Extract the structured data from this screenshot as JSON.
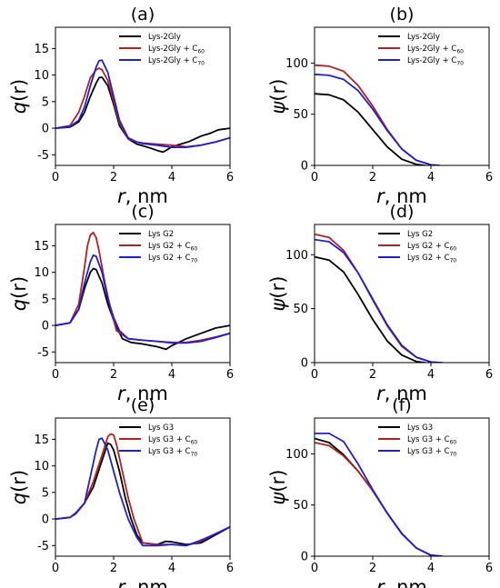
{
  "chart_data": [
    {
      "type": "line",
      "panel_label": "(a)",
      "xlabel_var": "r",
      "xlabel_unit": ", nm",
      "ylabel_var": "q",
      "ylabel_arg": "(r)",
      "xlim": [
        0,
        6
      ],
      "ylim": [
        -7,
        19
      ],
      "xticks": [
        0,
        2,
        4,
        6
      ],
      "yticks": [
        -5,
        0,
        5,
        10,
        15
      ],
      "legend_position": "top-right",
      "series": [
        {
          "name": "Lys-2Gly",
          "name_sub": "",
          "color": "#000000",
          "x": [
            0,
            0.5,
            0.8,
            1.0,
            1.2,
            1.4,
            1.5,
            1.6,
            1.8,
            2.0,
            2.2,
            2.5,
            2.8,
            3.0,
            3.3,
            3.5,
            3.7,
            3.8,
            4.0,
            4.3,
            4.6,
            5.0,
            5.3,
            5.6,
            6.0
          ],
          "y": [
            0,
            0.2,
            1.2,
            3,
            6,
            8.5,
            9.5,
            9.6,
            8,
            4.5,
            0.5,
            -2,
            -3,
            -3.3,
            -3.8,
            -4.2,
            -4.5,
            -4.2,
            -3.5,
            -3,
            -2.5,
            -1.5,
            -1,
            -0.3,
            0
          ]
        },
        {
          "name": "Lys-2Gly + C",
          "name_sub": "60",
          "color": "#b22222",
          "x": [
            0,
            0.5,
            0.8,
            1.0,
            1.2,
            1.4,
            1.5,
            1.6,
            1.8,
            2.0,
            2.2,
            2.5,
            2.8,
            3.0,
            3.5,
            4.0,
            4.5,
            5.0,
            5.5,
            6.0
          ],
          "y": [
            0,
            0.5,
            3,
            6,
            9.5,
            11,
            11.3,
            11,
            9,
            5,
            1,
            -2,
            -2.6,
            -2.8,
            -3,
            -3.2,
            -3.5,
            -3.2,
            -2.6,
            -1.8
          ]
        },
        {
          "name": "Lys-2Gly + C",
          "name_sub": "70",
          "color": "#1f1fd6",
          "x": [
            0,
            0.5,
            0.8,
            1.0,
            1.2,
            1.4,
            1.5,
            1.6,
            1.8,
            2.0,
            2.2,
            2.5,
            2.8,
            3.0,
            3.5,
            4.0,
            4.5,
            5.0,
            5.5,
            6.0
          ],
          "y": [
            0,
            0.3,
            1.5,
            4,
            8,
            11.5,
            12.7,
            12.8,
            10.5,
            6,
            1.5,
            -1.8,
            -2.6,
            -2.9,
            -3.2,
            -3.6,
            -3.6,
            -3.2,
            -2.6,
            -1.8
          ]
        }
      ]
    },
    {
      "type": "line",
      "panel_label": "(b)",
      "xlabel_var": "r",
      "xlabel_unit": ", nm",
      "ylabel_var": "ψ",
      "ylabel_arg": "(r)",
      "xlim": [
        0,
        6
      ],
      "ylim": [
        0,
        135
      ],
      "xticks": [
        0,
        2,
        4,
        6
      ],
      "yticks": [
        0,
        50,
        100
      ],
      "legend_position": "top-right",
      "series": [
        {
          "name": "Lys-2Gly",
          "name_sub": "",
          "color": "#000000",
          "x": [
            0,
            0.5,
            1.0,
            1.5,
            2.0,
            2.5,
            3.0,
            3.5,
            3.8
          ],
          "y": [
            70,
            69,
            64,
            52,
            35,
            18,
            6,
            1,
            0
          ]
        },
        {
          "name": "Lys-2Gly + C",
          "name_sub": "60",
          "color": "#b22222",
          "x": [
            0,
            0.5,
            1.0,
            1.5,
            2.0,
            2.5,
            3.0,
            3.5,
            4.0,
            4.3
          ],
          "y": [
            98,
            97,
            92,
            78,
            58,
            35,
            16,
            5,
            0.5,
            0
          ]
        },
        {
          "name": "Lys-2Gly + C",
          "name_sub": "70",
          "color": "#1f1fd6",
          "x": [
            0,
            0.5,
            1.0,
            1.5,
            2.0,
            2.5,
            3.0,
            3.5,
            4.0,
            4.3
          ],
          "y": [
            89,
            88,
            84,
            73,
            55,
            34,
            16,
            5,
            0.5,
            0
          ]
        }
      ]
    },
    {
      "type": "line",
      "panel_label": "(c)",
      "xlabel_var": "r",
      "xlabel_unit": ", nm",
      "ylabel_var": "q",
      "ylabel_arg": "(r)",
      "xlim": [
        0,
        6
      ],
      "ylim": [
        -7,
        19
      ],
      "xticks": [
        0,
        2,
        4,
        6
      ],
      "yticks": [
        -5,
        0,
        5,
        10,
        15
      ],
      "legend_position": "top-right",
      "series": [
        {
          "name": "Lys G2",
          "name_sub": "",
          "color": "#000000",
          "x": [
            0,
            0.5,
            0.8,
            1.0,
            1.2,
            1.3,
            1.4,
            1.6,
            1.8,
            2.0,
            2.3,
            2.6,
            3.0,
            3.5,
            3.8,
            4.0,
            4.5,
            5.0,
            5.5,
            6.0
          ],
          "y": [
            0,
            0.5,
            3,
            7,
            10,
            10.7,
            10.5,
            8,
            4,
            1,
            -2.5,
            -3.2,
            -3.5,
            -4,
            -4.5,
            -3.8,
            -2.5,
            -1.5,
            -0.5,
            0
          ]
        },
        {
          "name": "Lys G2 + C",
          "name_sub": "60",
          "color": "#b22222",
          "x": [
            0,
            0.5,
            0.8,
            1.0,
            1.1,
            1.2,
            1.3,
            1.4,
            1.5,
            1.7,
            1.9,
            2.1,
            2.5,
            3.0,
            3.5,
            4.0,
            4.5,
            5.0,
            5.5,
            6.0
          ],
          "y": [
            0,
            0.5,
            4,
            11,
            15,
            17,
            17.5,
            16.5,
            14,
            8,
            3,
            -1,
            -2.5,
            -2.8,
            -3,
            -3.2,
            -3.2,
            -2.8,
            -2.2,
            -1.5
          ]
        },
        {
          "name": "Lys G2 + C",
          "name_sub": "70",
          "color": "#1f1fd6",
          "x": [
            0,
            0.5,
            0.8,
            1.0,
            1.2,
            1.3,
            1.4,
            1.6,
            1.8,
            2.0,
            2.2,
            2.5,
            3.0,
            3.5,
            4.0,
            4.5,
            5.0,
            5.5,
            6.0
          ],
          "y": [
            0,
            0.5,
            3,
            8,
            12,
            13.2,
            13,
            10,
            5,
            1.5,
            -1,
            -2.5,
            -2.8,
            -3,
            -3.3,
            -3.3,
            -3,
            -2.3,
            -1.5
          ]
        }
      ]
    },
    {
      "type": "line",
      "panel_label": "(d)",
      "xlabel_var": "r",
      "xlabel_unit": ", nm",
      "ylabel_var": "ψ",
      "ylabel_arg": "(r)",
      "xlim": [
        0,
        6
      ],
      "ylim": [
        0,
        128
      ],
      "xticks": [
        0,
        2,
        4,
        6
      ],
      "yticks": [
        0,
        50,
        100
      ],
      "legend_position": "top-right",
      "series": [
        {
          "name": "Lys G2",
          "name_sub": "",
          "color": "#000000",
          "x": [
            0,
            0.5,
            1.0,
            1.5,
            2.0,
            2.5,
            3.0,
            3.5,
            3.8
          ],
          "y": [
            98,
            95,
            84,
            63,
            40,
            20,
            7,
            1,
            0
          ]
        },
        {
          "name": "Lys G2 + C",
          "name_sub": "60",
          "color": "#b22222",
          "x": [
            0,
            0.5,
            1.0,
            1.5,
            2.0,
            2.5,
            3.0,
            3.5,
            4.0,
            4.3
          ],
          "y": [
            119,
            116,
            104,
            83,
            58,
            34,
            15,
            5,
            0.5,
            0
          ]
        },
        {
          "name": "Lys G2 + C",
          "name_sub": "70",
          "color": "#1f1fd6",
          "x": [
            0,
            0.5,
            1.0,
            1.5,
            2.0,
            2.5,
            3.0,
            3.5,
            4.0,
            4.4
          ],
          "y": [
            114,
            112,
            102,
            83,
            59,
            35,
            16,
            5,
            0.5,
            0
          ]
        }
      ]
    },
    {
      "type": "line",
      "panel_label": "(e)",
      "xlabel_var": "r",
      "xlabel_unit": ", nm",
      "ylabel_var": "q",
      "ylabel_arg": "(r)",
      "xlim": [
        0,
        6
      ],
      "ylim": [
        -7,
        19
      ],
      "xticks": [
        0,
        2,
        4,
        6
      ],
      "yticks": [
        -5,
        0,
        5,
        10,
        15
      ],
      "legend_position": "top-right",
      "series": [
        {
          "name": "Lys G3",
          "name_sub": "",
          "color": "#000000",
          "x": [
            0,
            0.5,
            0.7,
            1.0,
            1.3,
            1.6,
            1.8,
            1.9,
            2.0,
            2.2,
            2.4,
            2.6,
            2.8,
            3.0,
            3.5,
            3.8,
            4.0,
            4.5,
            5.0,
            5.5,
            6.0
          ],
          "y": [
            0,
            0.3,
            1,
            3,
            6,
            11,
            14.3,
            14,
            13,
            9,
            4,
            0,
            -3,
            -4.5,
            -4.8,
            -4.2,
            -4.3,
            -4.8,
            -4.5,
            -3,
            -1.5
          ]
        },
        {
          "name": "Lys G3 + C",
          "name_sub": "60",
          "color": "#b22222",
          "x": [
            0,
            0.5,
            0.7,
            1.0,
            1.3,
            1.6,
            1.8,
            1.9,
            2.0,
            2.1,
            2.3,
            2.5,
            2.7,
            3.0,
            3.5,
            4.0,
            4.5,
            5.0,
            5.5,
            6.0
          ],
          "y": [
            0,
            0.3,
            1.2,
            3,
            7,
            12,
            15.5,
            16,
            15.8,
            14,
            9,
            4,
            0,
            -4.5,
            -4.8,
            -4.8,
            -5,
            -4.2,
            -2.8,
            -1.5
          ]
        },
        {
          "name": "Lys G3 + C",
          "name_sub": "70",
          "color": "#1f1fd6",
          "x": [
            0,
            0.5,
            0.7,
            1.0,
            1.2,
            1.4,
            1.5,
            1.6,
            1.8,
            2.0,
            2.2,
            2.5,
            2.8,
            3.0,
            3.5,
            4.0,
            4.5,
            5.0,
            5.5,
            6.0
          ],
          "y": [
            0,
            0.3,
            1,
            3,
            8,
            13,
            15,
            15.2,
            13,
            9,
            5,
            0,
            -3.5,
            -5,
            -5,
            -4.8,
            -5,
            -4,
            -2.8,
            -1.5
          ]
        }
      ]
    },
    {
      "type": "line",
      "panel_label": "(f)",
      "xlabel_var": "r",
      "xlabel_unit": ", nm",
      "ylabel_var": "ψ",
      "ylabel_arg": "(r)",
      "xlim": [
        0,
        6
      ],
      "ylim": [
        0,
        135
      ],
      "xticks": [
        0,
        2,
        4,
        6
      ],
      "yticks": [
        0,
        50,
        100
      ],
      "legend_position": "top-right",
      "series": [
        {
          "name": "Lys G3",
          "name_sub": "",
          "color": "#000000",
          "x": [
            0,
            0.5,
            1.0,
            1.5,
            2.0,
            2.5,
            3.0,
            3.5,
            4.0,
            4.3
          ],
          "y": [
            115,
            111,
            99,
            83,
            64,
            42,
            22,
            8,
            1,
            0
          ]
        },
        {
          "name": "Lys G3 + C",
          "name_sub": "60",
          "color": "#b22222",
          "x": [
            0,
            0.5,
            1.0,
            1.5,
            2.0,
            2.5,
            3.0,
            3.5,
            4.0,
            4.3
          ],
          "y": [
            111,
            108,
            98,
            83,
            64,
            42,
            22,
            8,
            1,
            0
          ]
        },
        {
          "name": "Lys G3 + C",
          "name_sub": "70",
          "color": "#1f1fd6",
          "x": [
            0,
            0.5,
            1.0,
            1.5,
            2.0,
            2.5,
            3.0,
            3.5,
            4.0,
            4.4
          ],
          "y": [
            120,
            120,
            112,
            90,
            65,
            42,
            22,
            8,
            1,
            0
          ]
        }
      ]
    }
  ]
}
